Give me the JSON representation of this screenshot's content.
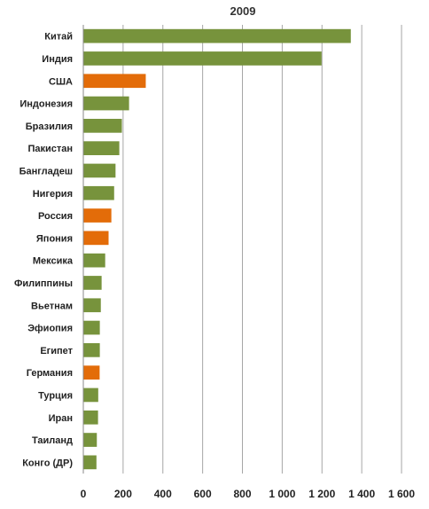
{
  "chart_data": {
    "type": "bar",
    "orientation": "horizontal",
    "title": "2009",
    "xlabel": "",
    "ylabel": "",
    "xlim": [
      0,
      1600
    ],
    "x_ticks": [
      0,
      200,
      400,
      600,
      800,
      1000,
      1200,
      1400,
      1600
    ],
    "x_tick_labels": [
      "0",
      "200",
      "400",
      "600",
      "800",
      "1 000",
      "1 200",
      "1 400",
      "1 600"
    ],
    "grid": "vertical",
    "legend": "none",
    "categories": [
      "Китай",
      "Индия",
      "США",
      "Индонезия",
      "Бразилия",
      "Пакистан",
      "Бангладеш",
      "Нигерия",
      "Россия",
      "Япония",
      "Мексика",
      "Филиппины",
      "Вьетнам",
      "Эфиопия",
      "Египет",
      "Германия",
      "Турция",
      "Иран",
      "Таиланд",
      "Конго (ДР)"
    ],
    "values": [
      1345,
      1198,
      314,
      230,
      194,
      181,
      162,
      155,
      141,
      127,
      110,
      92,
      88,
      83,
      83,
      82,
      75,
      74,
      68,
      66
    ],
    "highlight": [
      "США",
      "Россия",
      "Япония",
      "Германия"
    ],
    "colors": {
      "default": "#77933c",
      "highlight": "#e36c09",
      "grid": "#a6a6a6",
      "axis": "#888888"
    }
  }
}
